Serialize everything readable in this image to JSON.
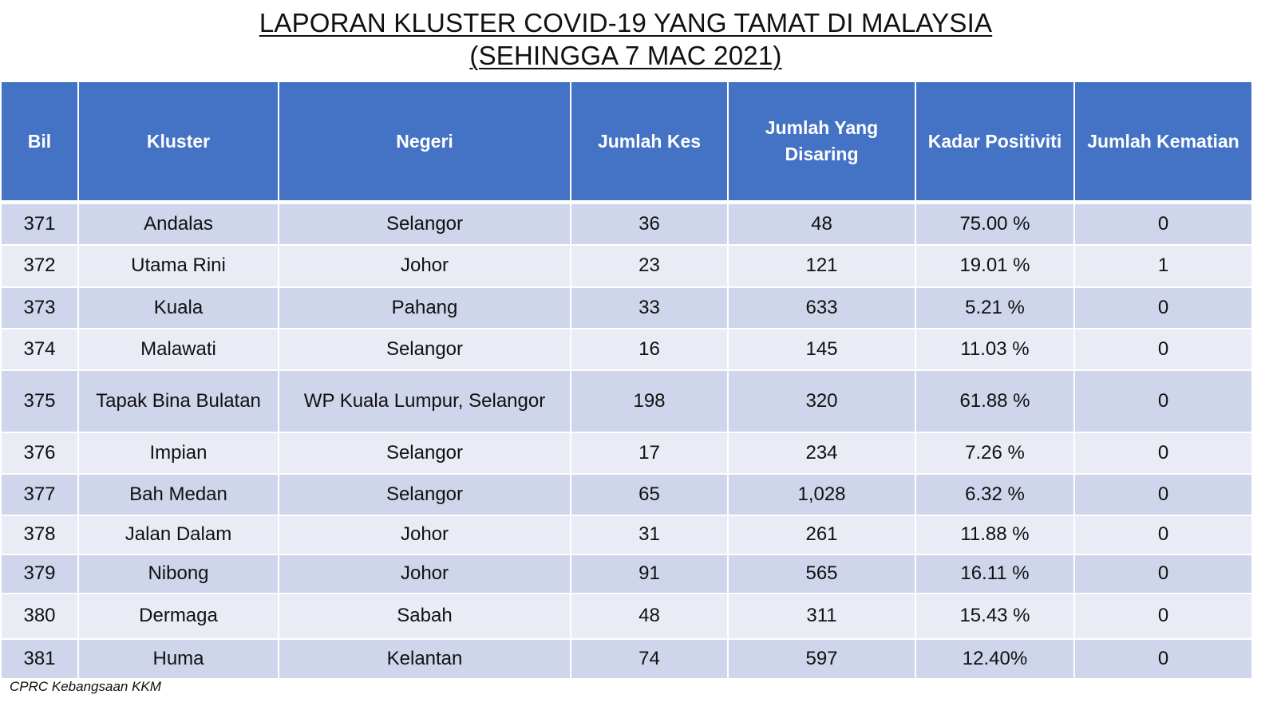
{
  "title": {
    "line1": "LAPORAN KLUSTER COVID-19 YANG TAMAT DI MALAYSIA",
    "line2": "(SEHINGGA  7 MAC 2021)"
  },
  "table": {
    "headers": {
      "bil": "Bil",
      "kluster": "Kluster",
      "negeri": "Negeri",
      "jumlah_kes": "Jumlah Kes",
      "jumlah_disaring": "Jumlah Yang Disaring",
      "kadar_positiviti": "Kadar Positiviti",
      "jumlah_kematian": "Jumlah Kematian"
    },
    "rows": [
      {
        "bil": "371",
        "kluster": "Andalas",
        "negeri": "Selangor",
        "jumlah_kes": "36",
        "jumlah_disaring": "48",
        "kadar_positiviti": "75.00 %",
        "jumlah_kematian": "0"
      },
      {
        "bil": "372",
        "kluster": "Utama Rini",
        "negeri": "Johor",
        "jumlah_kes": "23",
        "jumlah_disaring": "121",
        "kadar_positiviti": "19.01 %",
        "jumlah_kematian": "1"
      },
      {
        "bil": "373",
        "kluster": "Kuala",
        "negeri": "Pahang",
        "jumlah_kes": "33",
        "jumlah_disaring": "633",
        "kadar_positiviti": "5.21 %",
        "jumlah_kematian": "0"
      },
      {
        "bil": "374",
        "kluster": "Malawati",
        "negeri": "Selangor",
        "jumlah_kes": "16",
        "jumlah_disaring": "145",
        "kadar_positiviti": "11.03 %",
        "jumlah_kematian": "0"
      },
      {
        "bil": "375",
        "kluster": "Tapak Bina Bulatan",
        "negeri": "WP Kuala Lumpur, Selangor",
        "jumlah_kes": "198",
        "jumlah_disaring": "320",
        "kadar_positiviti": "61.88 %",
        "jumlah_kematian": "0"
      },
      {
        "bil": "376",
        "kluster": "Impian",
        "negeri": "Selangor",
        "jumlah_kes": "17",
        "jumlah_disaring": "234",
        "kadar_positiviti": "7.26 %",
        "jumlah_kematian": "0"
      },
      {
        "bil": "377",
        "kluster": "Bah Medan",
        "negeri": "Selangor",
        "jumlah_kes": "65",
        "jumlah_disaring": "1,028",
        "kadar_positiviti": "6.32 %",
        "jumlah_kematian": "0"
      },
      {
        "bil": "378",
        "kluster": "Jalan Dalam",
        "negeri": "Johor",
        "jumlah_kes": "31",
        "jumlah_disaring": "261",
        "kadar_positiviti": "11.88 %",
        "jumlah_kematian": "0"
      },
      {
        "bil": "379",
        "kluster": "Nibong",
        "negeri": "Johor",
        "jumlah_kes": "91",
        "jumlah_disaring": "565",
        "kadar_positiviti": "16.11 %",
        "jumlah_kematian": "0"
      },
      {
        "bil": "380",
        "kluster": "Dermaga",
        "negeri": "Sabah",
        "jumlah_kes": "48",
        "jumlah_disaring": "311",
        "kadar_positiviti": "15.43 %",
        "jumlah_kematian": "0"
      },
      {
        "bil": "381",
        "kluster": "Huma",
        "negeri": "Kelantan",
        "jumlah_kes": "74",
        "jumlah_disaring": "597",
        "kadar_positiviti": "12.40%",
        "jumlah_kematian": "0"
      }
    ]
  },
  "footer": {
    "source": "CPRC Kebangsaan KKM"
  },
  "colors": {
    "header_bg": "#4472c4",
    "row_odd_bg": "#cfd5ea",
    "row_even_bg": "#e9ebf5"
  }
}
